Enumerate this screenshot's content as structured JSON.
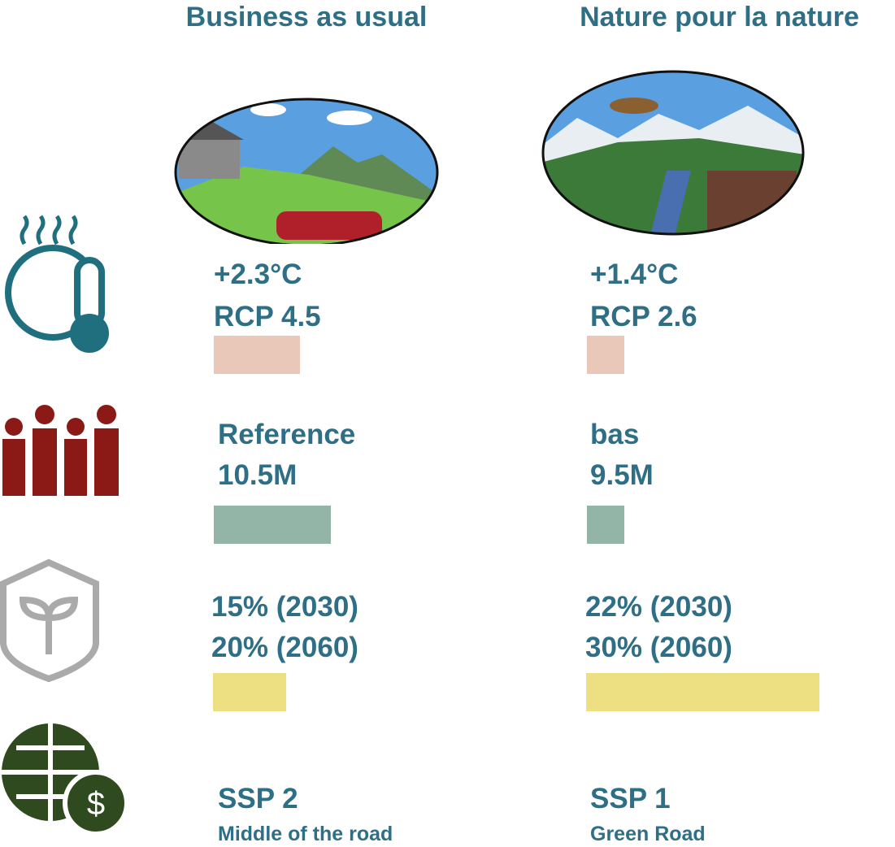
{
  "scenarios": [
    {
      "title": "Business as usual",
      "rows": [
        [
          "+2.3°C",
          "RCP 4.5"
        ],
        [
          "Reference",
          "10.5M"
        ],
        [
          "15% (2030)",
          "20% (2060)"
        ],
        [
          "SSP 2",
          "Middle of the road"
        ]
      ]
    },
    {
      "title": "Nature pour la nature",
      "rows": [
        [
          "+1.4°C",
          "RCP 2.6"
        ],
        [
          "bas",
          "9.5M"
        ],
        [
          "22% (2030)",
          "30% (2060)"
        ],
        [
          "SSP 1",
          "Green Road"
        ]
      ]
    }
  ]
}
